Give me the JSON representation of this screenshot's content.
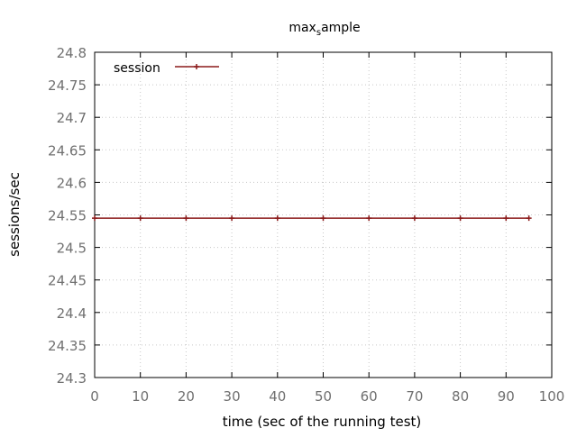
{
  "chart_data": {
    "type": "line",
    "title_parts": {
      "base": "max",
      "sub": "s",
      "rest": "ample"
    },
    "xlabel": "time (sec of the running test)",
    "ylabel": "sessions/sec",
    "xlim": [
      0,
      100
    ],
    "ylim": [
      24.3,
      24.8
    ],
    "x_ticks": [
      "0",
      "10",
      "20",
      "30",
      "40",
      "50",
      "60",
      "70",
      "80",
      "90",
      "100"
    ],
    "y_ticks": [
      "24.3",
      "24.35",
      "24.4",
      "24.45",
      "24.5",
      "24.55",
      "24.6",
      "24.65",
      "24.7",
      "24.75",
      "24.8"
    ],
    "grid": true,
    "legend_position": "top-left",
    "series": [
      {
        "name": "session",
        "color": "#8b1a1a",
        "marker": "plus",
        "x": [
          0,
          10,
          20,
          30,
          40,
          50,
          60,
          70,
          80,
          90,
          95
        ],
        "values": [
          24.545,
          24.545,
          24.545,
          24.545,
          24.545,
          24.545,
          24.545,
          24.545,
          24.545,
          24.545,
          24.545
        ]
      }
    ]
  }
}
